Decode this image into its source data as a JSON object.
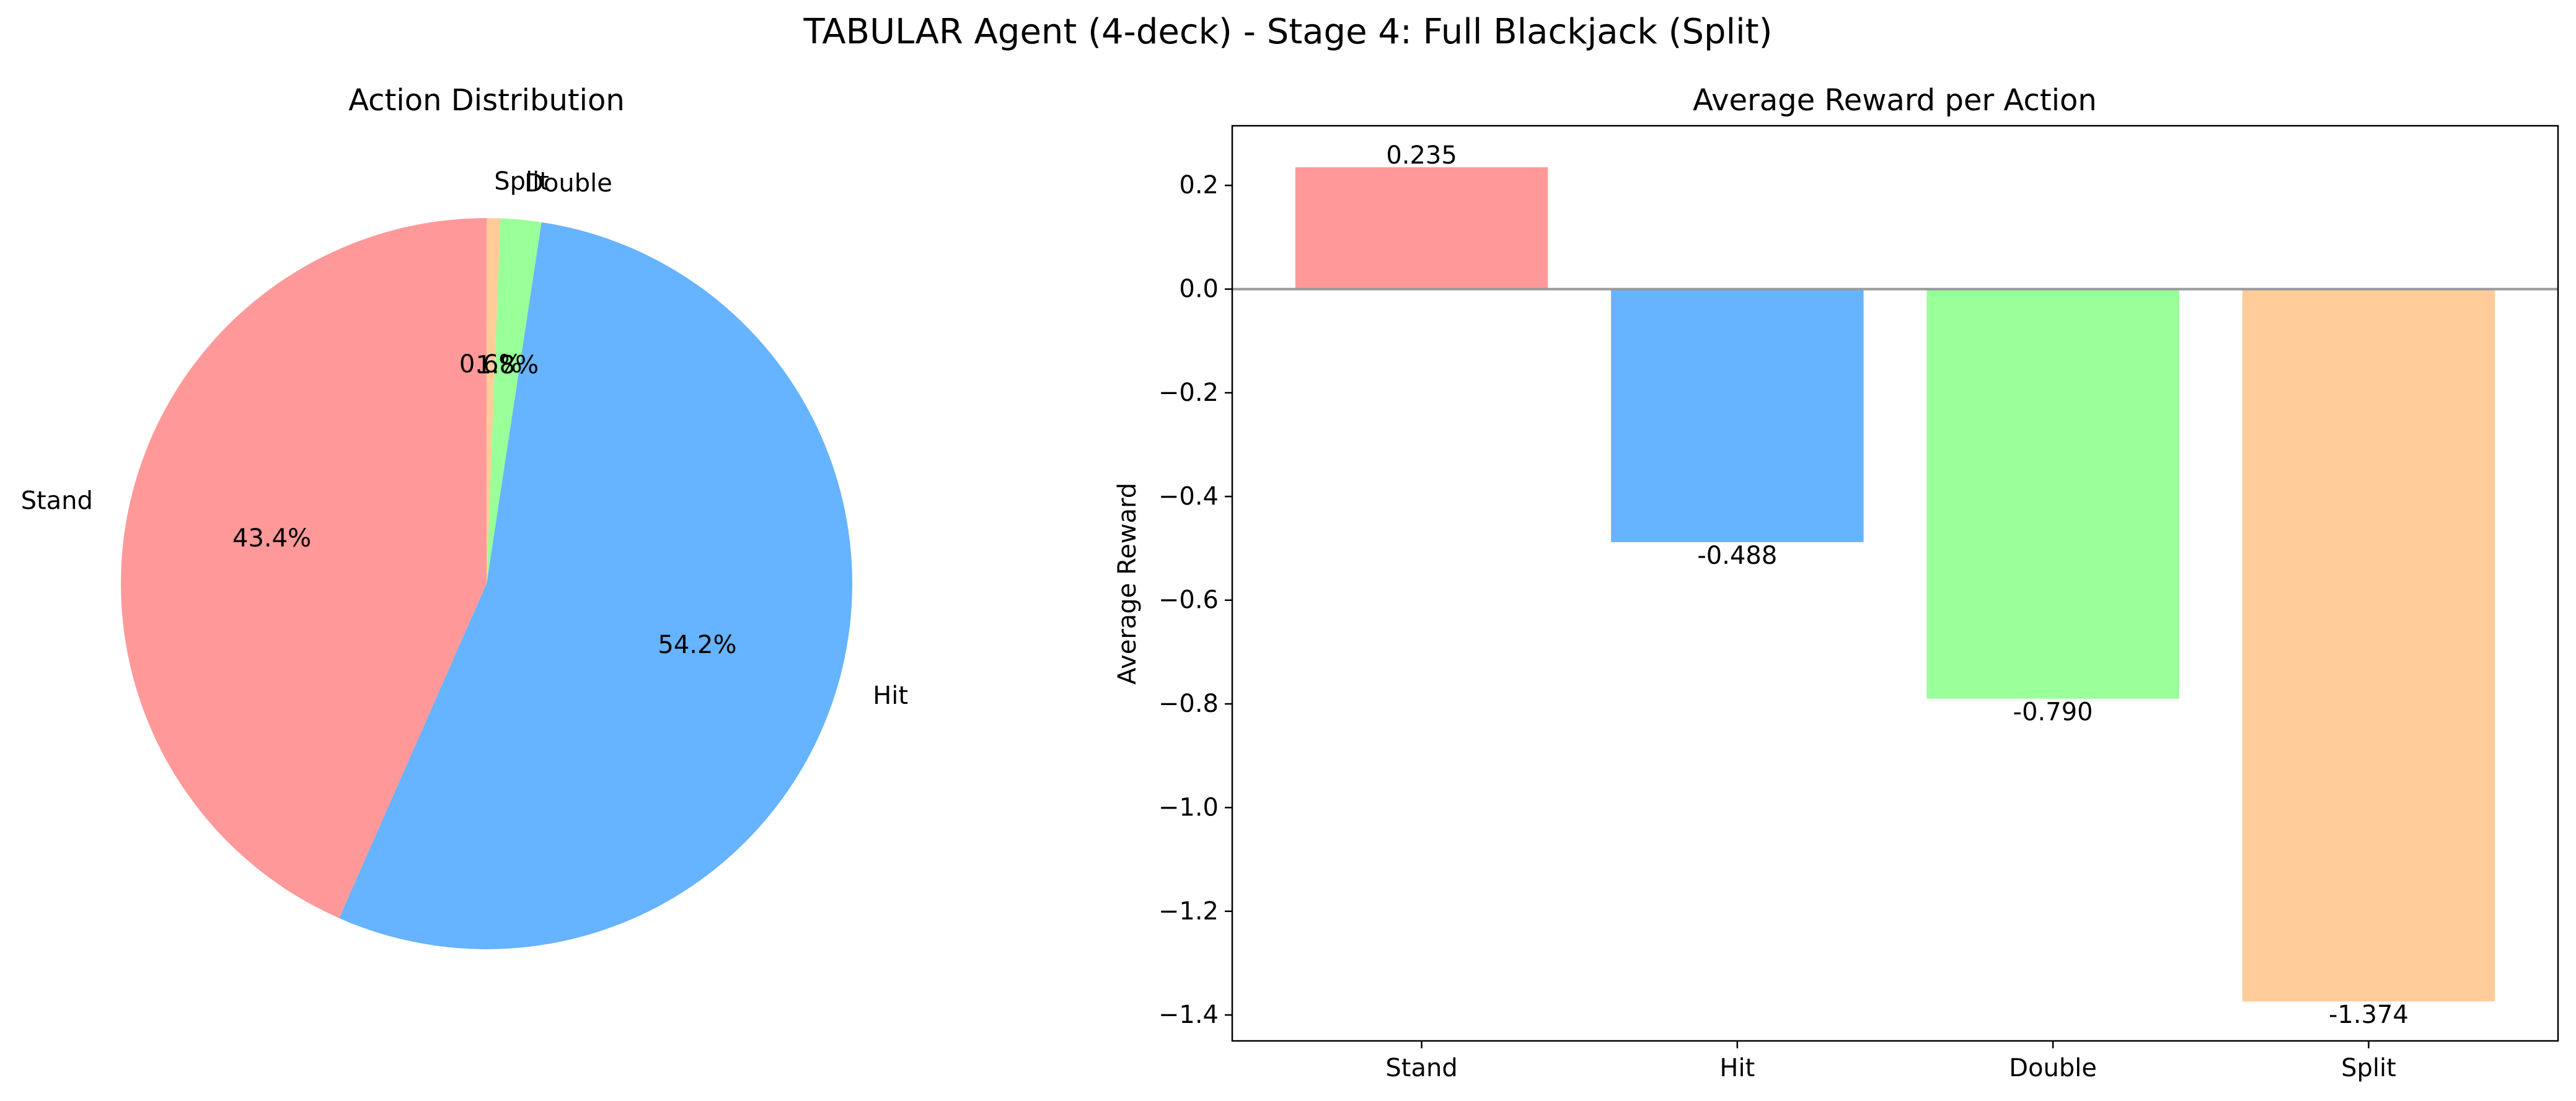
{
  "figure": {
    "title": "TABULAR Agent (4-deck) - Stage 4: Full Blackjack (Split)"
  },
  "chart_data": [
    {
      "type": "pie",
      "title": "Action Distribution",
      "labels": [
        "Stand",
        "Hit",
        "Double",
        "Split"
      ],
      "values": [
        43.4,
        54.2,
        1.8,
        0.6
      ],
      "pct_labels": [
        "43.4%",
        "54.2%",
        "1.8%",
        "0.6%"
      ],
      "colors": [
        "#ff9999",
        "#66b3ff",
        "#99ff99",
        "#ffcc99"
      ],
      "start_angle": 90,
      "direction": "counterclockwise"
    },
    {
      "type": "bar",
      "title": "Average Reward per Action",
      "categories": [
        "Stand",
        "Hit",
        "Double",
        "Split"
      ],
      "values": [
        0.235,
        -0.488,
        -0.79,
        -1.374
      ],
      "value_labels": [
        "0.235",
        "-0.488",
        "-0.790",
        "-1.374"
      ],
      "colors": [
        "#ff9999",
        "#66b3ff",
        "#99ff99",
        "#ffcc99"
      ],
      "xlabel": "",
      "ylabel": "Average Reward",
      "ylim": [
        -1.45,
        0.315
      ],
      "yticks": [
        0.2,
        0.0,
        -0.2,
        -0.4,
        -0.6,
        -0.8,
        -1.0,
        -1.2,
        -1.4
      ],
      "ytick_labels": [
        "0.2",
        "0.0",
        "−0.2",
        "−0.4",
        "−0.6",
        "−0.8",
        "−1.0",
        "−1.2",
        "−1.4"
      ],
      "zero_line": true,
      "zero_line_color": "#999999",
      "grid": false
    }
  ]
}
